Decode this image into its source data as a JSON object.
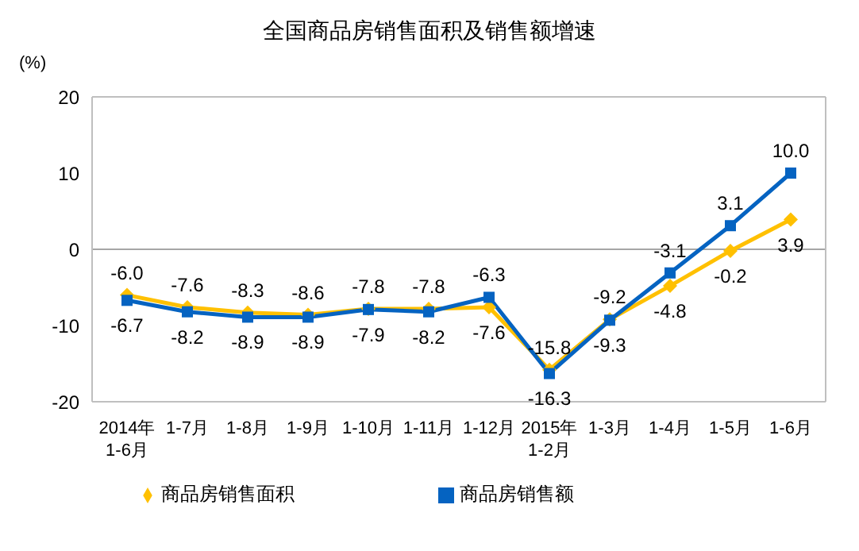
{
  "chart_data": {
    "type": "line",
    "title": "全国商品房销售面积及销售额增速",
    "ylabel": "(%)",
    "categories": [
      "2014年\n1-6月",
      "1-7月",
      "1-8月",
      "1-9月",
      "1-10月",
      "1-11月",
      "1-12月",
      "2015年\n1-2月",
      "1-3月",
      "1-4月",
      "1-5月",
      "1-6月"
    ],
    "series": [
      {
        "name": "商品房销售面积",
        "color": "#ffc000",
        "marker": "diamond",
        "values": [
          -6.0,
          -7.6,
          -8.3,
          -8.6,
          -7.8,
          -7.8,
          -7.6,
          -15.8,
          -9.2,
          -4.8,
          -0.2,
          3.9
        ],
        "value_labels": [
          "-6.0",
          "-7.6",
          "-8.3",
          "-8.6",
          "-7.8",
          "-7.8",
          "-7.6",
          "-15.8",
          "-9.2",
          "-4.8",
          "-0.2",
          "3.9"
        ]
      },
      {
        "name": "商品房销售额",
        "color": "#0563c1",
        "marker": "square",
        "values": [
          -6.7,
          -8.2,
          -8.9,
          -8.9,
          -7.9,
          -8.2,
          -6.3,
          -16.3,
          -9.3,
          -3.1,
          3.1,
          10.0
        ],
        "value_labels": [
          "-6.7",
          "-8.2",
          "-8.9",
          "-8.9",
          "-7.9",
          "-8.2",
          "-6.3",
          "-16.3",
          "-9.3",
          "-3.1",
          "3.1",
          "10.0"
        ]
      }
    ],
    "ylim": [
      -20,
      20
    ],
    "yticks": [
      -20,
      -10,
      0,
      10,
      20
    ],
    "ref_lines": [
      {
        "axis": "y",
        "value": 0,
        "color": "#a6a6a6"
      }
    ],
    "grid": false,
    "legend": "bottom",
    "line_style": "solid"
  }
}
